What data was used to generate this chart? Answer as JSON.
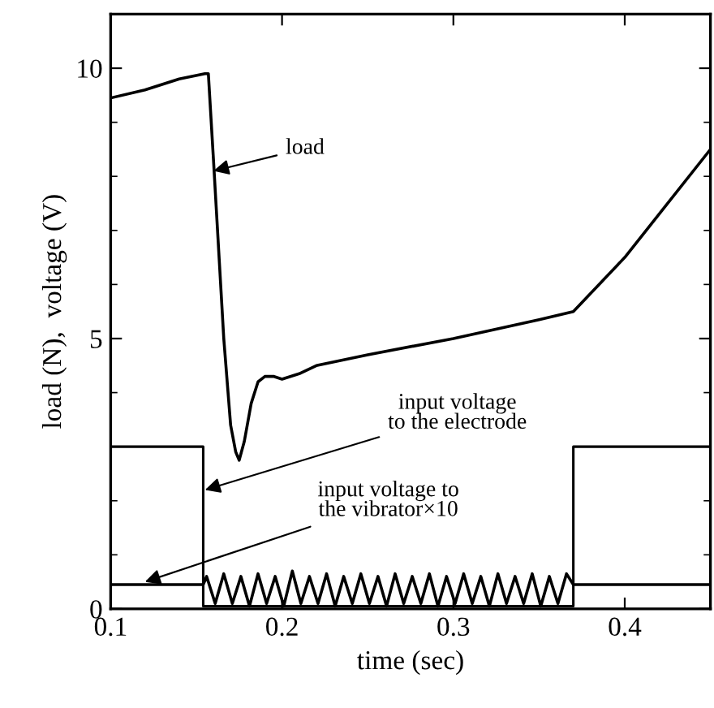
{
  "chart_data": {
    "type": "line",
    "xlabel": "time (sec)",
    "ylabel": "load (N),  voltage (V)",
    "xlim": [
      0.1,
      0.45
    ],
    "xticks": [
      0.1,
      0.2,
      0.3,
      0.4
    ],
    "ylim": [
      0,
      11
    ],
    "yticks": [
      0,
      5,
      10
    ],
    "grid": false,
    "marker": "none",
    "line_style": "solid",
    "series": [
      {
        "color": "#000000",
        "x": [
          0.1,
          0.12,
          0.14,
          0.155,
          0.157,
          0.16,
          0.166,
          0.17,
          0.173,
          0.175,
          0.178,
          0.182,
          0.186,
          0.19,
          0.195,
          0.2,
          0.21,
          0.22,
          0.25,
          0.3,
          0.35,
          0.37,
          0.4,
          0.45
        ],
        "values": [
          9.45,
          9.6,
          9.8,
          9.9,
          9.9,
          8.3,
          5.0,
          3.4,
          2.9,
          2.75,
          3.1,
          3.8,
          4.2,
          4.3,
          4.3,
          4.25,
          4.35,
          4.5,
          4.7,
          5.0,
          5.35,
          5.5,
          6.5,
          8.5
        ]
      },
      {
        "type": "step",
        "color": "#000000",
        "x": [
          0.1,
          0.154,
          0.154,
          0.37,
          0.37,
          0.45
        ],
        "values": [
          3.0,
          3.0,
          0.05,
          0.05,
          3.0,
          3.0
        ]
      },
      {
        "type": "line",
        "color": "#000000",
        "x": [
          0.1,
          0.154,
          0.156,
          0.161,
          0.166,
          0.171,
          0.176,
          0.181,
          0.186,
          0.191,
          0.196,
          0.201,
          0.206,
          0.211,
          0.216,
          0.221,
          0.226,
          0.231,
          0.236,
          0.241,
          0.246,
          0.251,
          0.256,
          0.261,
          0.266,
          0.271,
          0.276,
          0.281,
          0.286,
          0.291,
          0.296,
          0.301,
          0.306,
          0.311,
          0.316,
          0.321,
          0.326,
          0.331,
          0.336,
          0.341,
          0.346,
          0.351,
          0.356,
          0.361,
          0.366,
          0.37,
          0.45
        ],
        "values": [
          0.45,
          0.45,
          0.6,
          0.1,
          0.65,
          0.1,
          0.6,
          0.05,
          0.65,
          0.1,
          0.6,
          0.05,
          0.7,
          0.1,
          0.6,
          0.1,
          0.65,
          0.05,
          0.6,
          0.1,
          0.65,
          0.1,
          0.6,
          0.05,
          0.65,
          0.1,
          0.6,
          0.1,
          0.65,
          0.05,
          0.6,
          0.1,
          0.65,
          0.1,
          0.6,
          0.05,
          0.65,
          0.1,
          0.6,
          0.1,
          0.65,
          0.05,
          0.6,
          0.1,
          0.65,
          0.45,
          0.45
        ]
      }
    ],
    "annotations": [
      {
        "text": "load",
        "x": 0.16,
        "y": 8.1
      },
      {
        "text": "input voltage\nto the electrode",
        "x": 0.155,
        "y": 2.2
      },
      {
        "text": "input voltage to\nthe vibrator×10",
        "x": 0.12,
        "y": 0.5
      }
    ]
  }
}
